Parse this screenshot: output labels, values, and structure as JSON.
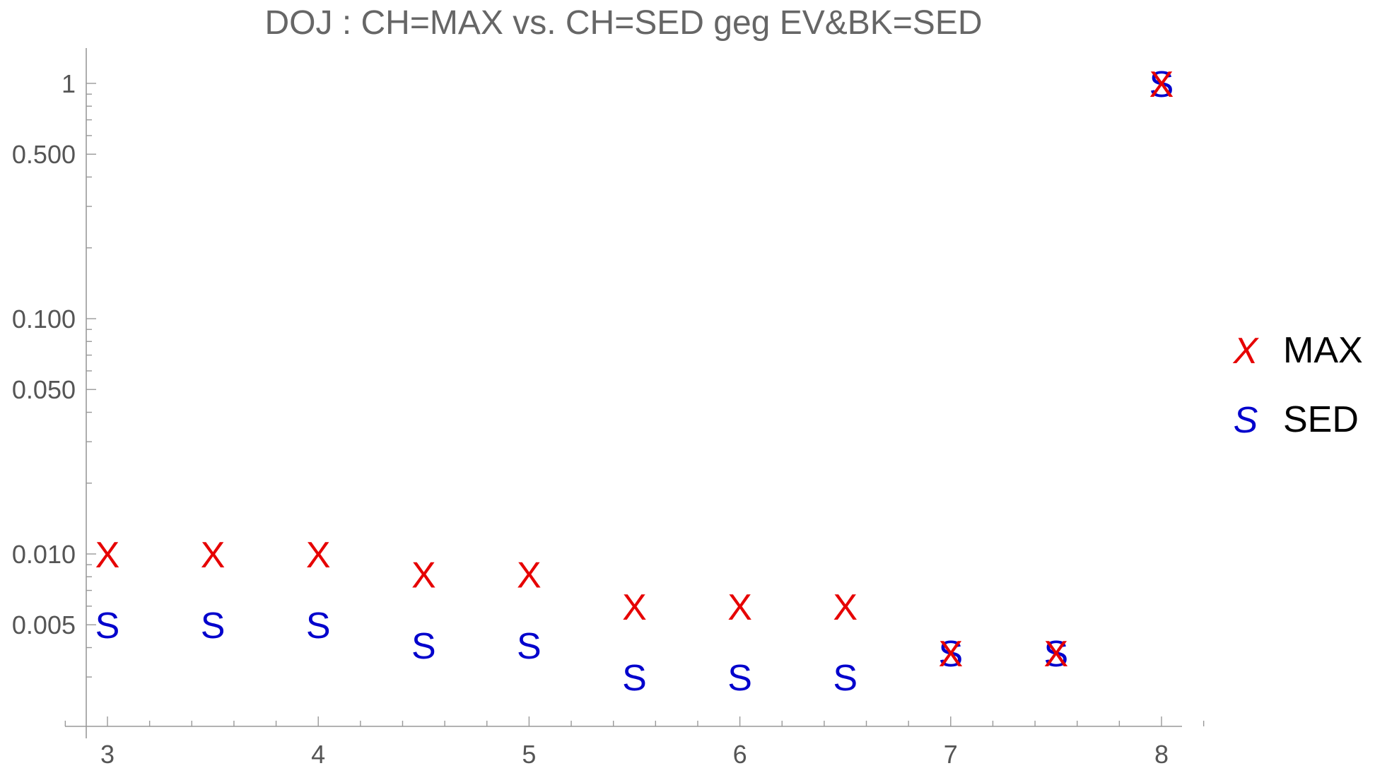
{
  "chart_data": {
    "type": "scatter",
    "title": "DOJ : CH=MAX vs. CH=SED geg EV&BK=SED",
    "xlabel": "",
    "ylabel": "",
    "xlim": [
      2.9,
      8.1
    ],
    "ylim": [
      0.002,
      1.2
    ],
    "y_scale": "log",
    "grid": false,
    "legend_position": "right",
    "x_ticks": [
      3,
      4,
      5,
      6,
      7,
      8
    ],
    "x_tick_labels": [
      "3",
      "4",
      "5",
      "6",
      "7",
      "8"
    ],
    "y_ticks": [
      0.005,
      0.01,
      0.05,
      0.1,
      0.5,
      1
    ],
    "y_tick_labels": [
      "0.005",
      "0.010",
      "0.050",
      "0.100",
      "0.500",
      "1"
    ],
    "series": [
      {
        "name": "MAX",
        "marker": "X",
        "color": "#e60000",
        "x": [
          3,
          3.5,
          4,
          4.5,
          5,
          5.5,
          6,
          6.5,
          7,
          7.5,
          8
        ],
        "y": [
          0.01,
          0.01,
          0.01,
          0.0082,
          0.0082,
          0.006,
          0.006,
          0.006,
          0.0038,
          0.0038,
          1
        ]
      },
      {
        "name": "SED",
        "marker": "S",
        "color": "#0000cc",
        "x": [
          3,
          3.5,
          4,
          4.5,
          5,
          5.5,
          6,
          6.5,
          7,
          7.5,
          8
        ],
        "y": [
          0.005,
          0.005,
          0.005,
          0.0041,
          0.0041,
          0.003,
          0.003,
          0.003,
          0.0038,
          0.0038,
          1
        ]
      }
    ]
  }
}
